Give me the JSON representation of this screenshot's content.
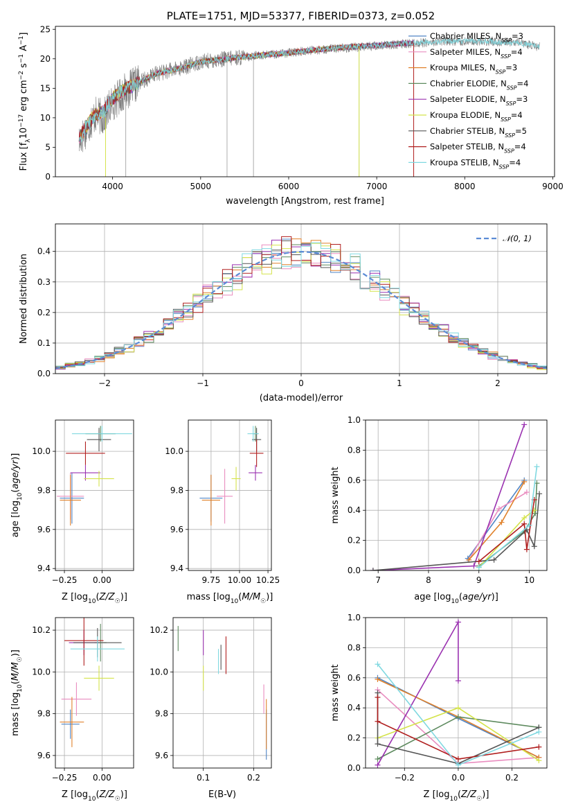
{
  "colors": {
    "chabrier_miles": "#4f84c4",
    "salpeter_miles": "#e98cbf",
    "kroupa_miles": "#e0812b",
    "chabrier_elodie": "#5d8a5e",
    "salpeter_elodie": "#9a31b0",
    "kroupa_elodie": "#d4e34a",
    "chabrier_stelib": "#555555",
    "salpeter_stelib": "#b01e1e",
    "kroupa_stelib": "#7fd8e0",
    "gaussian": "#5b8bd5",
    "grid": "#b0b0b0"
  },
  "chart_data": [
    {
      "id": "spectrum",
      "type": "line",
      "title": "PLATE=1751, MJD=53377, FIBERID=0373, z=0.052",
      "xlabel": "wavelength [Angstrom, rest frame]",
      "ylabel": "Flux [f_λ10^-17 erg cm^-2 s^-1 A^-1]",
      "xlim": [
        3350,
        9020
      ],
      "ylim": [
        0,
        25.5
      ],
      "xticks": [
        4000,
        5000,
        6000,
        7000,
        8000,
        9000
      ],
      "yticks": [
        0,
        5,
        10,
        15,
        20,
        25
      ],
      "grid": false,
      "legend_position": "upper right",
      "legend": [
        {
          "key": "chabrier_miles",
          "label": "Chabrier MILES, N",
          "sub": "SSP",
          "tail": "=3"
        },
        {
          "key": "salpeter_miles",
          "label": "Salpeter MILES, N",
          "sub": "SSP",
          "tail": "=4"
        },
        {
          "key": "kroupa_miles",
          "label": "Kroupa MILES, N",
          "sub": "SSP",
          "tail": "=3"
        },
        {
          "key": "chabrier_elodie",
          "label": "Chabrier ELODIE, N",
          "sub": "SSP",
          "tail": "=4"
        },
        {
          "key": "salpeter_elodie",
          "label": "Salpeter ELODIE, N",
          "sub": "SSP",
          "tail": "=3"
        },
        {
          "key": "kroupa_elodie",
          "label": "Kroupa ELODIE, N",
          "sub": "SSP",
          "tail": "=4"
        },
        {
          "key": "chabrier_stelib",
          "label": "Chabrier STELIB, N",
          "sub": "SSP",
          "tail": "=5"
        },
        {
          "key": "salpeter_stelib",
          "label": "Salpeter STELIB, N",
          "sub": "SSP",
          "tail": "=4"
        },
        {
          "key": "kroupa_stelib",
          "label": "Kroupa STELIB, N",
          "sub": "SSP",
          "tail": "=4"
        }
      ],
      "observed_continuum": [
        [
          3620,
          6
        ],
        [
          3700,
          8
        ],
        [
          3800,
          10.5
        ],
        [
          3900,
          10
        ],
        [
          3970,
          12
        ],
        [
          4100,
          14
        ],
        [
          4300,
          16
        ],
        [
          4500,
          17.5
        ],
        [
          4800,
          18.5
        ],
        [
          5000,
          19.5
        ],
        [
          5300,
          20
        ],
        [
          5600,
          20.5
        ],
        [
          6000,
          21
        ],
        [
          6300,
          21.5
        ],
        [
          6600,
          21.8
        ],
        [
          7000,
          22.2
        ],
        [
          7400,
          22.6
        ],
        [
          7800,
          23
        ],
        [
          8200,
          23
        ],
        [
          8600,
          22.8
        ],
        [
          8850,
          22
        ]
      ],
      "model_continuum": [
        [
          3620,
          6.5
        ],
        [
          3700,
          8.5
        ],
        [
          3800,
          10.5
        ],
        [
          3900,
          11
        ],
        [
          3980,
          13
        ],
        [
          4100,
          14.5
        ],
        [
          4300,
          16
        ],
        [
          4500,
          17.5
        ],
        [
          4800,
          18.5
        ],
        [
          5000,
          19.5
        ],
        [
          5300,
          20
        ],
        [
          5600,
          20.5
        ],
        [
          6000,
          21
        ],
        [
          6300,
          21.5
        ],
        [
          6600,
          21.9
        ],
        [
          7000,
          22.3
        ],
        [
          7400,
          22.7
        ],
        [
          7800,
          23
        ],
        [
          8200,
          23
        ],
        [
          8600,
          22.7
        ],
        [
          8850,
          22.1
        ]
      ],
      "model_xmax": [
        7420,
        7420,
        6800,
        7420,
        7420,
        6800,
        7420,
        7420,
        8850
      ]
    },
    {
      "id": "residuals",
      "type": "histogram",
      "xlabel": "(data-model)/error",
      "ylabel": "Normed distribution",
      "xlim": [
        -2.5,
        2.5
      ],
      "ylim": [
        0,
        0.49
      ],
      "xticks": [
        -2,
        -1,
        0,
        1,
        2
      ],
      "yticks": [
        0.0,
        0.1,
        0.2,
        0.3,
        0.4
      ],
      "grid": true,
      "gaussian_label": "𝒩(0, 1)",
      "bin_edges_from": -2.5,
      "bin_width": 0.1
    },
    {
      "id": "age_vs_Z",
      "type": "errorbar",
      "xlabel": "Z [log10(Z/Z☉)]",
      "ylabel": "age [log10(age/yr)]",
      "xlim": [
        -0.31,
        0.21
      ],
      "ylim": [
        9.39,
        10.16
      ],
      "xticks": [
        -0.25,
        0.0
      ],
      "xtick_labels": [
        "−0.25",
        "0.00"
      ],
      "yticks": [
        9.4,
        9.6,
        9.8,
        10.0
      ],
      "grid": true,
      "points": [
        {
          "key": "chabrier_miles",
          "x": -0.2,
          "xerr": 0.08,
          "y": 9.76,
          "yerr": 0.13
        },
        {
          "key": "salpeter_miles",
          "x": -0.21,
          "xerr": 0.09,
          "y": 9.77,
          "yerr": 0.12
        },
        {
          "key": "kroupa_miles",
          "x": -0.21,
          "xerr": 0.07,
          "y": 9.75,
          "yerr": 0.13
        },
        {
          "key": "chabrier_elodie",
          "x": -0.01,
          "xerr": 0.1,
          "y": 10.09,
          "yerr": 0.04
        },
        {
          "key": "salpeter_elodie",
          "x": -0.11,
          "xerr": 0.1,
          "y": 9.89,
          "yerr": 0.04
        },
        {
          "key": "kroupa_elodie",
          "x": -0.02,
          "xerr": 0.1,
          "y": 9.86,
          "yerr": 0.04
        },
        {
          "key": "chabrier_stelib",
          "x": -0.02,
          "xerr": 0.08,
          "y": 10.06,
          "yerr": 0.06
        },
        {
          "key": "salpeter_stelib",
          "x": -0.11,
          "xerr": 0.13,
          "y": 9.99,
          "yerr": 0.06
        },
        {
          "key": "kroupa_stelib",
          "x": 0.0,
          "xerr": 0.2,
          "y": 10.09,
          "yerr": 0.04
        }
      ]
    },
    {
      "id": "age_vs_mass",
      "type": "errorbar",
      "xlabel": "mass [log10(M/M☉)]",
      "ylabel": "",
      "xlim": [
        9.55,
        10.28
      ],
      "ylim": [
        9.39,
        10.16
      ],
      "xticks": [
        9.75,
        10.0,
        10.25
      ],
      "xtick_labels": [
        "9.75",
        "10.00",
        "10.25"
      ],
      "yticks": [
        9.4,
        9.6,
        9.8,
        10.0
      ],
      "grid": true,
      "points": [
        {
          "key": "chabrier_miles",
          "x": 9.75,
          "xerr": 0.1,
          "y": 9.76,
          "yerr": 0.12
        },
        {
          "key": "salpeter_miles",
          "x": 9.87,
          "xerr": 0.07,
          "y": 9.77,
          "yerr": 0.14
        },
        {
          "key": "kroupa_miles",
          "x": 9.75,
          "xerr": 0.08,
          "y": 9.75,
          "yerr": 0.13
        },
        {
          "key": "chabrier_elodie",
          "x": 10.14,
          "xerr": 0.02,
          "y": 10.09,
          "yerr": 0.04
        },
        {
          "key": "salpeter_elodie",
          "x": 10.14,
          "xerr": 0.06,
          "y": 9.89,
          "yerr": 0.04
        },
        {
          "key": "kroupa_elodie",
          "x": 9.97,
          "xerr": 0.04,
          "y": 9.86,
          "yerr": 0.06
        },
        {
          "key": "chabrier_stelib",
          "x": 10.15,
          "xerr": 0.04,
          "y": 10.06,
          "yerr": 0.06
        },
        {
          "key": "salpeter_stelib",
          "x": 10.15,
          "xerr": 0.06,
          "y": 9.99,
          "yerr": 0.07
        },
        {
          "key": "kroupa_stelib",
          "x": 10.12,
          "xerr": 0.05,
          "y": 10.09,
          "yerr": 0.04
        }
      ]
    },
    {
      "id": "weight_vs_age",
      "type": "line",
      "xlabel": "age [log10(age/yr)]",
      "ylabel": "mass weight",
      "xlim": [
        6.75,
        10.35
      ],
      "ylim": [
        0,
        1.0
      ],
      "xticks": [
        7,
        8,
        9,
        10
      ],
      "yticks": [
        0.0,
        0.2,
        0.4,
        0.6,
        0.8,
        1.0
      ],
      "grid": true,
      "series": [
        {
          "key": "chabrier_miles",
          "x": [
            8.78,
            9.9
          ],
          "y": [
            0.08,
            0.6
          ]
        },
        {
          "key": "salpeter_miles",
          "x": [
            8.8,
            9.4,
            9.95
          ],
          "y": [
            0.07,
            0.41,
            0.52
          ]
        },
        {
          "key": "kroupa_miles",
          "x": [
            8.8,
            9.45,
            9.9
          ],
          "y": [
            0.07,
            0.32,
            0.59
          ]
        },
        {
          "key": "chabrier_elodie",
          "x": [
            9.0,
            9.9,
            10.12,
            10.15
          ],
          "y": [
            0.03,
            0.26,
            0.38,
            0.58
          ]
        },
        {
          "key": "salpeter_elodie",
          "x": [
            6.9,
            8.9,
            9.9
          ],
          "y": [
            0.0,
            0.03,
            0.97
          ]
        },
        {
          "key": "kroupa_elodie",
          "x": [
            9.0,
            9.9,
            10.1
          ],
          "y": [
            0.02,
            0.35,
            0.4
          ]
        },
        {
          "key": "chabrier_stelib",
          "x": [
            6.9,
            9.3,
            9.95,
            10.1,
            10.2
          ],
          "y": [
            0.0,
            0.07,
            0.27,
            0.16,
            0.51
          ]
        },
        {
          "key": "salpeter_stelib",
          "x": [
            9.0,
            9.9,
            9.95,
            10.1
          ],
          "y": [
            0.06,
            0.31,
            0.14,
            0.47
          ]
        },
        {
          "key": "kroupa_stelib",
          "x": [
            9.0,
            10.0,
            10.15
          ],
          "y": [
            0.02,
            0.3,
            0.69
          ]
        }
      ]
    },
    {
      "id": "mass_vs_Z",
      "type": "errorbar",
      "xlabel": "Z [log10(Z/Z☉)]",
      "ylabel": "mass [log10(M/M☉)]",
      "xlim": [
        -0.31,
        0.21
      ],
      "ylim": [
        9.54,
        10.26
      ],
      "xticks": [
        -0.25,
        0.0
      ],
      "xtick_labels": [
        "−0.25",
        "0.00"
      ],
      "yticks": [
        9.6,
        9.8,
        10.0,
        10.2
      ],
      "grid": true,
      "points": [
        {
          "key": "chabrier_miles",
          "x": -0.21,
          "xerr": 0.06,
          "y": 9.75,
          "yerr": 0.07
        },
        {
          "key": "salpeter_miles",
          "x": -0.17,
          "xerr": 0.1,
          "y": 9.87,
          "yerr": 0.08
        },
        {
          "key": "kroupa_miles",
          "x": -0.2,
          "xerr": 0.08,
          "y": 9.76,
          "yerr": 0.12
        },
        {
          "key": "chabrier_elodie",
          "x": -0.01,
          "xerr": 0.04,
          "y": 10.14,
          "yerr": 0.09
        },
        {
          "key": "salpeter_elodie",
          "x": -0.12,
          "xerr": 0.1,
          "y": 10.14,
          "yerr": 0.06
        },
        {
          "key": "kroupa_elodie",
          "x": -0.02,
          "xerr": 0.1,
          "y": 9.97,
          "yerr": 0.06
        },
        {
          "key": "chabrier_stelib",
          "x": -0.03,
          "xerr": 0.16,
          "y": 10.14,
          "yerr": 0.07
        },
        {
          "key": "salpeter_stelib",
          "x": -0.12,
          "xerr": 0.13,
          "y": 10.15,
          "yerr": 0.12
        },
        {
          "key": "kroupa_stelib",
          "x": -0.03,
          "xerr": 0.18,
          "y": 10.11,
          "yerr": 0.06
        }
      ]
    },
    {
      "id": "mass_vs_ebv",
      "type": "errorbar",
      "xlabel": "E(B-V)",
      "ylabel": "",
      "xlim": [
        0.04,
        0.235
      ],
      "ylim": [
        9.54,
        10.26
      ],
      "xticks": [
        0.1,
        0.2
      ],
      "xtick_labels": [
        "0.1",
        "0.2"
      ],
      "yticks": [
        9.6,
        9.8,
        10.0,
        10.2
      ],
      "grid": true,
      "points": [
        {
          "key": "chabrier_miles",
          "x": 0.225,
          "xerr": 0,
          "y": 9.7,
          "yerr": 0.12
        },
        {
          "key": "salpeter_miles",
          "x": 0.22,
          "xerr": 0,
          "y": 9.87,
          "yerr": 0.07
        },
        {
          "key": "kroupa_miles",
          "x": 0.225,
          "xerr": 0,
          "y": 9.75,
          "yerr": 0.12
        },
        {
          "key": "chabrier_elodie",
          "x": 0.05,
          "xerr": 0,
          "y": 10.16,
          "yerr": 0.06
        },
        {
          "key": "salpeter_elodie",
          "x": 0.1,
          "xerr": 0,
          "y": 10.14,
          "yerr": 0.06
        },
        {
          "key": "kroupa_elodie",
          "x": 0.1,
          "xerr": 0,
          "y": 9.97,
          "yerr": 0.06
        },
        {
          "key": "chabrier_stelib",
          "x": 0.135,
          "xerr": 0,
          "y": 10.07,
          "yerr": 0.06
        },
        {
          "key": "salpeter_stelib",
          "x": 0.145,
          "xerr": 0,
          "y": 10.08,
          "yerr": 0.09
        },
        {
          "key": "kroupa_stelib",
          "x": 0.13,
          "xerr": 0,
          "y": 10.05,
          "yerr": 0.06
        }
      ]
    },
    {
      "id": "weight_vs_Z",
      "type": "line",
      "xlabel": "Z [log10(Z/Z☉)]",
      "ylabel": "mass weight",
      "xlim": [
        -0.345,
        0.33
      ],
      "ylim": [
        0,
        1.0
      ],
      "xticks": [
        -0.2,
        0.0,
        0.2
      ],
      "xtick_labels": [
        "−0.2",
        "0.0",
        "0.2"
      ],
      "yticks": [
        0.0,
        0.2,
        0.4,
        0.6,
        0.8,
        1.0
      ],
      "grid": true,
      "series": [
        {
          "key": "chabrier_miles",
          "x": [
            -0.3,
            0.0,
            0.3
          ],
          "y": [
            0.6,
            0.33,
            0.07
          ]
        },
        {
          "key": "salpeter_miles",
          "x": [
            -0.3,
            0.0,
            0.3
          ],
          "y": [
            0.52,
            0.03,
            0.07
          ]
        },
        {
          "key": "kroupa_miles",
          "x": [
            -0.3,
            0.0,
            0.3
          ],
          "y": [
            0.59,
            0.34,
            0.07
          ]
        },
        {
          "key": "chabrier_elodie",
          "x": [
            -0.3,
            0.0,
            0.3
          ],
          "y": [
            0.06,
            0.34,
            0.27
          ]
        },
        {
          "key": "salpeter_elodie",
          "x": [
            -0.3,
            0.0,
            0.0
          ],
          "y": [
            0.02,
            0.97,
            0.58
          ]
        },
        {
          "key": "kroupa_elodie",
          "x": [
            -0.3,
            0.0,
            0.3
          ],
          "y": [
            0.2,
            0.4,
            0.05
          ]
        },
        {
          "key": "chabrier_stelib",
          "x": [
            -0.3,
            -0.3,
            0.0,
            0.3
          ],
          "y": [
            0.5,
            0.16,
            0.03,
            0.27
          ]
        },
        {
          "key": "salpeter_stelib",
          "x": [
            -0.3,
            -0.3,
            0.0,
            0.3
          ],
          "y": [
            0.47,
            0.31,
            0.06,
            0.14
          ]
        },
        {
          "key": "kroupa_stelib",
          "x": [
            -0.3,
            0.0,
            0.3
          ],
          "y": [
            0.69,
            0.02,
            0.24
          ]
        }
      ]
    }
  ]
}
